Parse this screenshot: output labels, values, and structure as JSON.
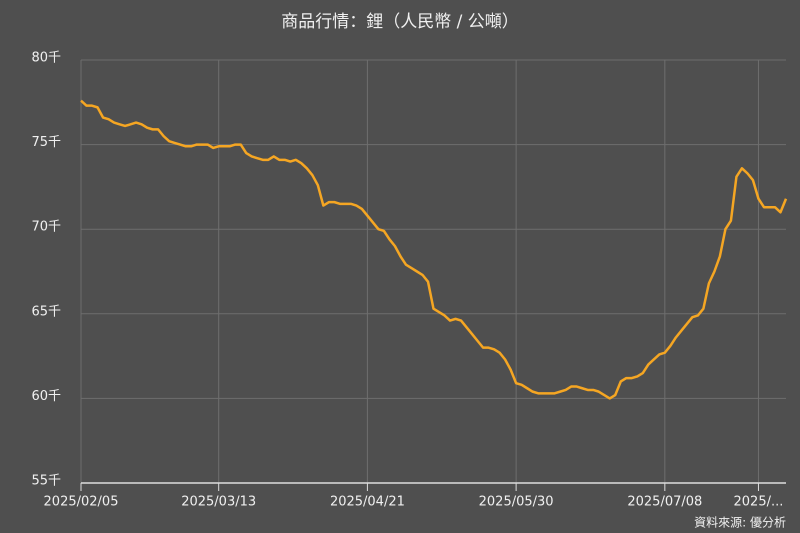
{
  "chart_data": {
    "type": "line",
    "title": "商品行情：鋰（人民幣 / 公噸）",
    "source": "資料來源: 優分析",
    "color": "#f5a623",
    "grid": true,
    "categories": [
      "2025/02/05",
      null,
      null,
      null,
      null,
      null,
      null,
      null,
      null,
      null,
      null,
      null,
      null,
      null,
      null,
      null,
      null,
      null,
      null,
      null,
      null,
      null,
      null,
      null,
      null,
      "2025/03/13",
      null,
      null,
      null,
      null,
      null,
      null,
      null,
      null,
      null,
      null,
      null,
      null,
      null,
      null,
      null,
      null,
      null,
      null,
      null,
      null,
      null,
      null,
      null,
      null,
      null,
      null,
      "2025/04/21",
      null,
      null,
      null,
      null,
      null,
      null,
      null,
      null,
      null,
      null,
      null,
      null,
      null,
      null,
      null,
      null,
      null,
      null,
      null,
      null,
      null,
      null,
      null,
      null,
      null,
      null,
      "2025/05/30",
      null,
      null,
      null,
      null,
      null,
      null,
      null,
      null,
      null,
      null,
      null,
      null,
      null,
      null,
      null,
      null,
      null,
      null,
      null,
      null,
      null,
      null,
      null,
      null,
      null,
      null,
      "2025/07/08",
      null,
      null,
      null,
      null,
      null,
      null,
      null,
      null,
      null,
      null,
      null,
      null,
      null,
      null,
      null,
      null,
      "2025/...",
      null,
      null,
      null,
      null,
      null
    ],
    "values": [
      77.6,
      77.3,
      77.3,
      77.2,
      76.6,
      76.5,
      76.3,
      76.2,
      76.1,
      76.2,
      76.3,
      76.2,
      76.0,
      75.9,
      75.9,
      75.5,
      75.2,
      75.1,
      75.0,
      74.9,
      74.9,
      75.0,
      75.0,
      75.0,
      74.8,
      74.9,
      74.9,
      74.9,
      75.0,
      75.0,
      74.5,
      74.3,
      74.2,
      74.1,
      74.1,
      74.3,
      74.1,
      74.1,
      74.0,
      74.1,
      73.9,
      73.6,
      73.2,
      72.6,
      71.4,
      71.6,
      71.6,
      71.5,
      71.5,
      71.5,
      71.4,
      71.2,
      70.8,
      70.4,
      70.0,
      69.9,
      69.4,
      69.0,
      68.4,
      67.9,
      67.7,
      67.5,
      67.3,
      66.9,
      65.3,
      65.1,
      64.9,
      64.6,
      64.7,
      64.6,
      64.2,
      63.8,
      63.4,
      63.0,
      63.0,
      62.9,
      62.7,
      62.3,
      61.7,
      60.9,
      60.8,
      60.6,
      60.4,
      60.3,
      60.3,
      60.3,
      60.3,
      60.4,
      60.5,
      60.7,
      60.7,
      60.6,
      60.5,
      60.5,
      60.4,
      60.2,
      60.0,
      60.2,
      61.0,
      61.2,
      61.2,
      61.3,
      61.5,
      62.0,
      62.3,
      62.6,
      62.7,
      63.1,
      63.6,
      64.0,
      64.4,
      64.8,
      64.9,
      65.3,
      66.8,
      67.5,
      68.4,
      70.0,
      70.5,
      73.1,
      73.6,
      73.3,
      72.9,
      71.8,
      71.3,
      71.3,
      71.3,
      71.0,
      71.8
    ],
    "ylim": [
      55,
      80
    ],
    "yticks": [
      {
        "value": 55,
        "label": "55千"
      },
      {
        "value": 60,
        "label": "60千"
      },
      {
        "value": 65,
        "label": "65千"
      },
      {
        "value": 70,
        "label": "70千"
      },
      {
        "value": 75,
        "label": "75千"
      },
      {
        "value": 80,
        "label": "80千"
      }
    ]
  }
}
